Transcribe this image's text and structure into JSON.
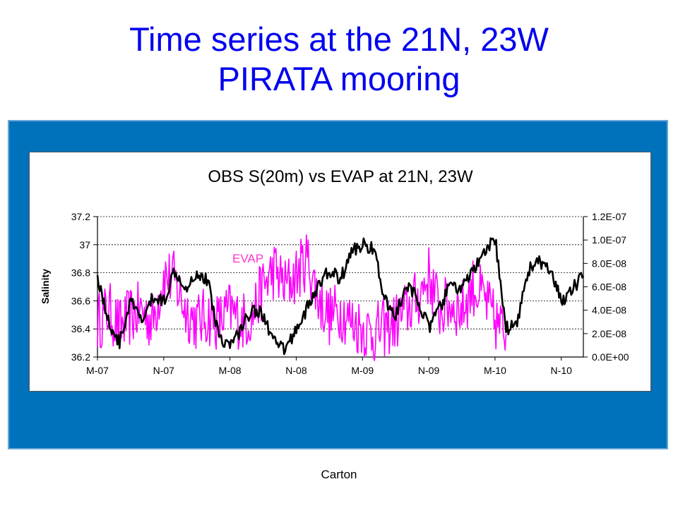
{
  "slide": {
    "title_line1": "Time series at the 21N, 23W",
    "title_line2": "PIRATA mooring",
    "footer": "Carton"
  },
  "colors": {
    "title": "#0000ee",
    "panel": "#0072bc",
    "salinity_series": "#000000",
    "evap_series": "#ff00ff"
  },
  "chart_data": {
    "type": "line",
    "title": "OBS S(20m) vs EVAP  at 21N, 23W",
    "ylabel": "Salinity",
    "y2label": "",
    "annotation": "EVAP",
    "x_ticks": [
      "M-07",
      "N-07",
      "M-08",
      "N-08",
      "M-09",
      "N-09",
      "M-10",
      "N-10"
    ],
    "x_tick_dates": [
      "2007-05",
      "2007-11",
      "2008-05",
      "2008-11",
      "2009-05",
      "2009-11",
      "2010-05",
      "2010-11"
    ],
    "xlim": [
      "2007-05",
      "2011-01"
    ],
    "ylim": [
      36.2,
      37.2
    ],
    "y_ticks": [
      "36.2",
      "36.4",
      "36.6",
      "36.8",
      "37",
      "37.2"
    ],
    "y2lim": [
      0,
      1.2e-07
    ],
    "y2_ticks": [
      "0.0E+00",
      "2.0E-08",
      "4.0E-08",
      "6.0E-08",
      "8.0E-08",
      "1.0E-07",
      "1.2E-07"
    ],
    "grid": true,
    "series": [
      {
        "axis": "left",
        "color": "#000000",
        "x": [
          "2007-05",
          "2007-06",
          "2007-07",
          "2007-08",
          "2007-09",
          "2007-10",
          "2007-11",
          "2007-12",
          "2008-01",
          "2008-02",
          "2008-03",
          "2008-04",
          "2008-05",
          "2008-06",
          "2008-07",
          "2008-08",
          "2008-09",
          "2008-10",
          "2008-11",
          "2008-12",
          "2009-01",
          "2009-02",
          "2009-03",
          "2009-04",
          "2009-05",
          "2009-06",
          "2009-07",
          "2009-08",
          "2009-09",
          "2009-10",
          "2009-11",
          "2009-12",
          "2010-01",
          "2010-02",
          "2010-03",
          "2010-04",
          "2010-05",
          "2010-06",
          "2010-07",
          "2010-08",
          "2010-09",
          "2010-10",
          "2010-11",
          "2010-12",
          "2011-01"
        ],
        "values": [
          36.78,
          36.45,
          36.3,
          36.6,
          36.45,
          36.62,
          36.6,
          36.82,
          36.7,
          36.8,
          36.74,
          36.35,
          36.28,
          36.4,
          36.55,
          36.5,
          36.3,
          36.25,
          36.4,
          36.55,
          36.7,
          36.82,
          36.75,
          36.95,
          37.0,
          36.98,
          36.6,
          36.5,
          36.7,
          36.62,
          36.4,
          36.55,
          36.72,
          36.68,
          36.82,
          36.92,
          37.05,
          36.4,
          36.45,
          36.82,
          36.88,
          36.8,
          36.6,
          36.68,
          36.78
        ]
      },
      {
        "axis": "right",
        "color": "#ff00ff",
        "x": [
          "2007-05",
          "2007-06",
          "2007-07",
          "2007-08",
          "2007-09",
          "2007-10",
          "2007-11",
          "2007-12",
          "2008-01",
          "2008-02",
          "2008-03",
          "2008-04",
          "2008-05",
          "2008-06",
          "2008-07",
          "2008-08",
          "2008-09",
          "2008-10",
          "2008-11",
          "2008-12",
          "2009-01",
          "2009-02",
          "2009-03",
          "2009-04",
          "2009-05",
          "2009-06",
          "2009-07",
          "2009-08",
          "2009-09",
          "2009-10",
          "2009-11",
          "2009-12",
          "2010-01",
          "2010-02",
          "2010-03",
          "2010-04",
          "2010-05",
          "2010-06"
        ],
        "values": [
          3e-08,
          4e-08,
          2.5e-08,
          3.5e-08,
          4e-08,
          3e-08,
          7e-08,
          6.5e-08,
          4e-08,
          3e-08,
          3.5e-08,
          3e-08,
          4e-08,
          3e-08,
          3.5e-08,
          6e-08,
          7.5e-08,
          6e-08,
          7e-08,
          8.5e-08,
          5e-08,
          3.5e-08,
          4e-08,
          3e-08,
          2.5e-08,
          2e-08,
          2.5e-08,
          3e-08,
          4e-08,
          5e-08,
          7e-08,
          4e-08,
          4.5e-08,
          4e-08,
          6e-08,
          5e-08,
          3e-08,
          2e-08
        ]
      }
    ]
  }
}
